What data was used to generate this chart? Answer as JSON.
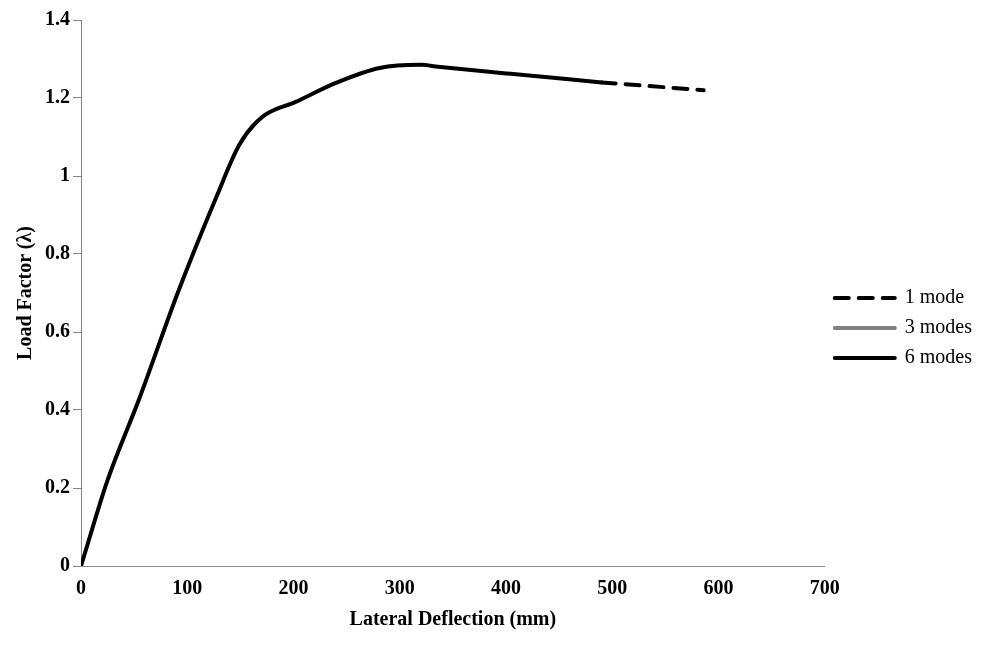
{
  "chart_data": {
    "type": "line",
    "xlabel": "Lateral Deflection (mm)",
    "ylabel": "Load Factor (λ)",
    "xlim": [
      0,
      700
    ],
    "xticks": [
      0,
      100,
      200,
      300,
      400,
      500,
      600,
      700
    ],
    "ylim": [
      0,
      1.4
    ],
    "yticks": [
      0,
      0.2,
      0.4,
      0.6,
      0.8,
      1,
      1.2,
      1.4
    ],
    "grid": false,
    "legend": "right",
    "marker": "none",
    "series": [
      {
        "name": "1 mode",
        "color": "#000000",
        "line_style": "dashed",
        "x": [
          490,
          586
        ],
        "values": [
          1.24,
          1.22
        ]
      },
      {
        "name": "3 modes",
        "color": "#808080",
        "line_style": "solid"
      },
      {
        "name": "6 modes",
        "color": "#000000",
        "line_style": "solid",
        "x": [
          0,
          25,
          55,
          91,
          128,
          149,
          170,
          202,
          241,
          281,
          320,
          336,
          400,
          490
        ],
        "values": [
          0,
          0.22,
          0.43,
          0.7,
          0.95,
          1.08,
          1.15,
          1.19,
          1.24,
          1.277,
          1.285,
          1.28,
          1.263,
          1.24
        ]
      }
    ]
  }
}
